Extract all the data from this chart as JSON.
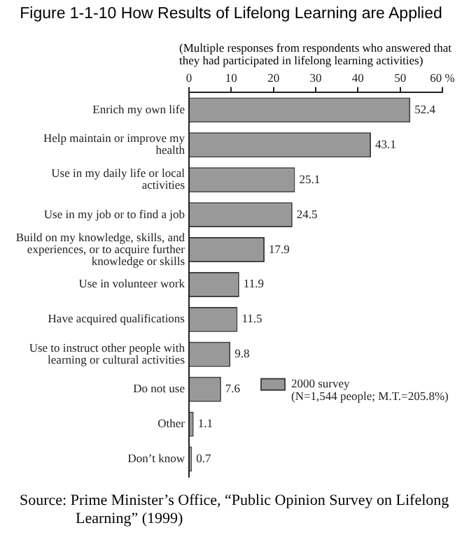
{
  "chart_data": {
    "type": "bar",
    "orientation": "horizontal",
    "title": "Figure 1-1-10 How Results of Lifelong Learning are Applied",
    "subtitle": "(Multiple responses from respondents who answered that they had participated in lifelong learning activities)",
    "categories": [
      "Enrich my own life",
      "Help maintain or improve my health",
      "Use in my daily life or local activities",
      "Use in my job or to find a job",
      "Build on my knowledge, skills, and experiences, or to acquire further knowledge or skills",
      "Use in volunteer work",
      "Have acquired qualifications",
      "Use to instruct other people with learning or cultural activities",
      "Do not use",
      "Other",
      "Don’t know"
    ],
    "series": [
      {
        "name": "2000 survey (N=1,544 people; M.T.=205.8%)",
        "color": "#999999",
        "values": [
          52.4,
          43.1,
          25.1,
          24.5,
          17.9,
          11.9,
          11.5,
          9.8,
          7.6,
          1.1,
          0.7
        ]
      }
    ],
    "xlim": [
      0,
      60
    ],
    "xticks": [
      0,
      10,
      20,
      30,
      40,
      50,
      {
        "value": 60,
        "label": "60 %"
      }
    ],
    "data_labels": true,
    "legend": "bottom right",
    "grid": false,
    "annotations": [
      "Source: Prime Minister’s Office, “Public Opinion Survey on Lifelong Learning” (1999)"
    ]
  }
}
